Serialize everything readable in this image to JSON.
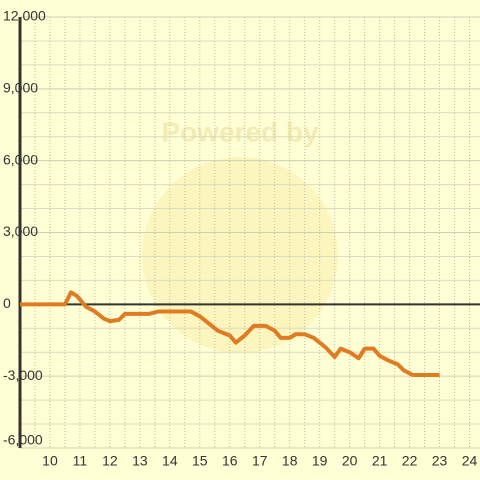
{
  "chart_data": {
    "type": "line",
    "watermark": "Powered by",
    "x": [
      9,
      10.5,
      10.7,
      10.9,
      11.2,
      11.5,
      11.8,
      12.0,
      12.3,
      12.5,
      13.0,
      13.3,
      13.6,
      14.0,
      14.7,
      15.0,
      15.3,
      15.6,
      16.0,
      16.2,
      16.5,
      16.8,
      17.2,
      17.5,
      17.7,
      18.0,
      18.2,
      18.5,
      18.8,
      19.2,
      19.5,
      19.7,
      20.0,
      20.3,
      20.5,
      20.8,
      21.0,
      21.3,
      21.6,
      21.8,
      22.1,
      22.5,
      23.0
    ],
    "series": [
      {
        "color": "#e07b22",
        "values": [
          0,
          0,
          500,
          350,
          -100,
          -300,
          -600,
          -700,
          -650,
          -400,
          -400,
          -400,
          -300,
          -300,
          -300,
          -500,
          -800,
          -1100,
          -1300,
          -1600,
          -1300,
          -900,
          -900,
          -1100,
          -1400,
          -1400,
          -1250,
          -1250,
          -1400,
          -1800,
          -2200,
          -1850,
          -2000,
          -2250,
          -1850,
          -1850,
          -2150,
          -2350,
          -2500,
          -2750,
          -2950,
          -2950,
          -2950
        ]
      }
    ],
    "xlim": [
      9,
      24.35
    ],
    "xticks": [
      10,
      11,
      12,
      13,
      14,
      15,
      16,
      17,
      18,
      19,
      20,
      21,
      22,
      23,
      24
    ],
    "ylim": [
      -6000,
      12000
    ],
    "yticks": [
      {
        "value": -6000,
        "label": "-6,000"
      },
      {
        "value": -3000,
        "label": "-3,000"
      },
      0,
      {
        "value": 3000,
        "label": "3,000"
      },
      {
        "value": 6000,
        "label": "6,000"
      },
      {
        "value": 9000,
        "label": "9,000"
      },
      {
        "value": 12000,
        "label": "12,000"
      }
    ],
    "grid": true
  }
}
